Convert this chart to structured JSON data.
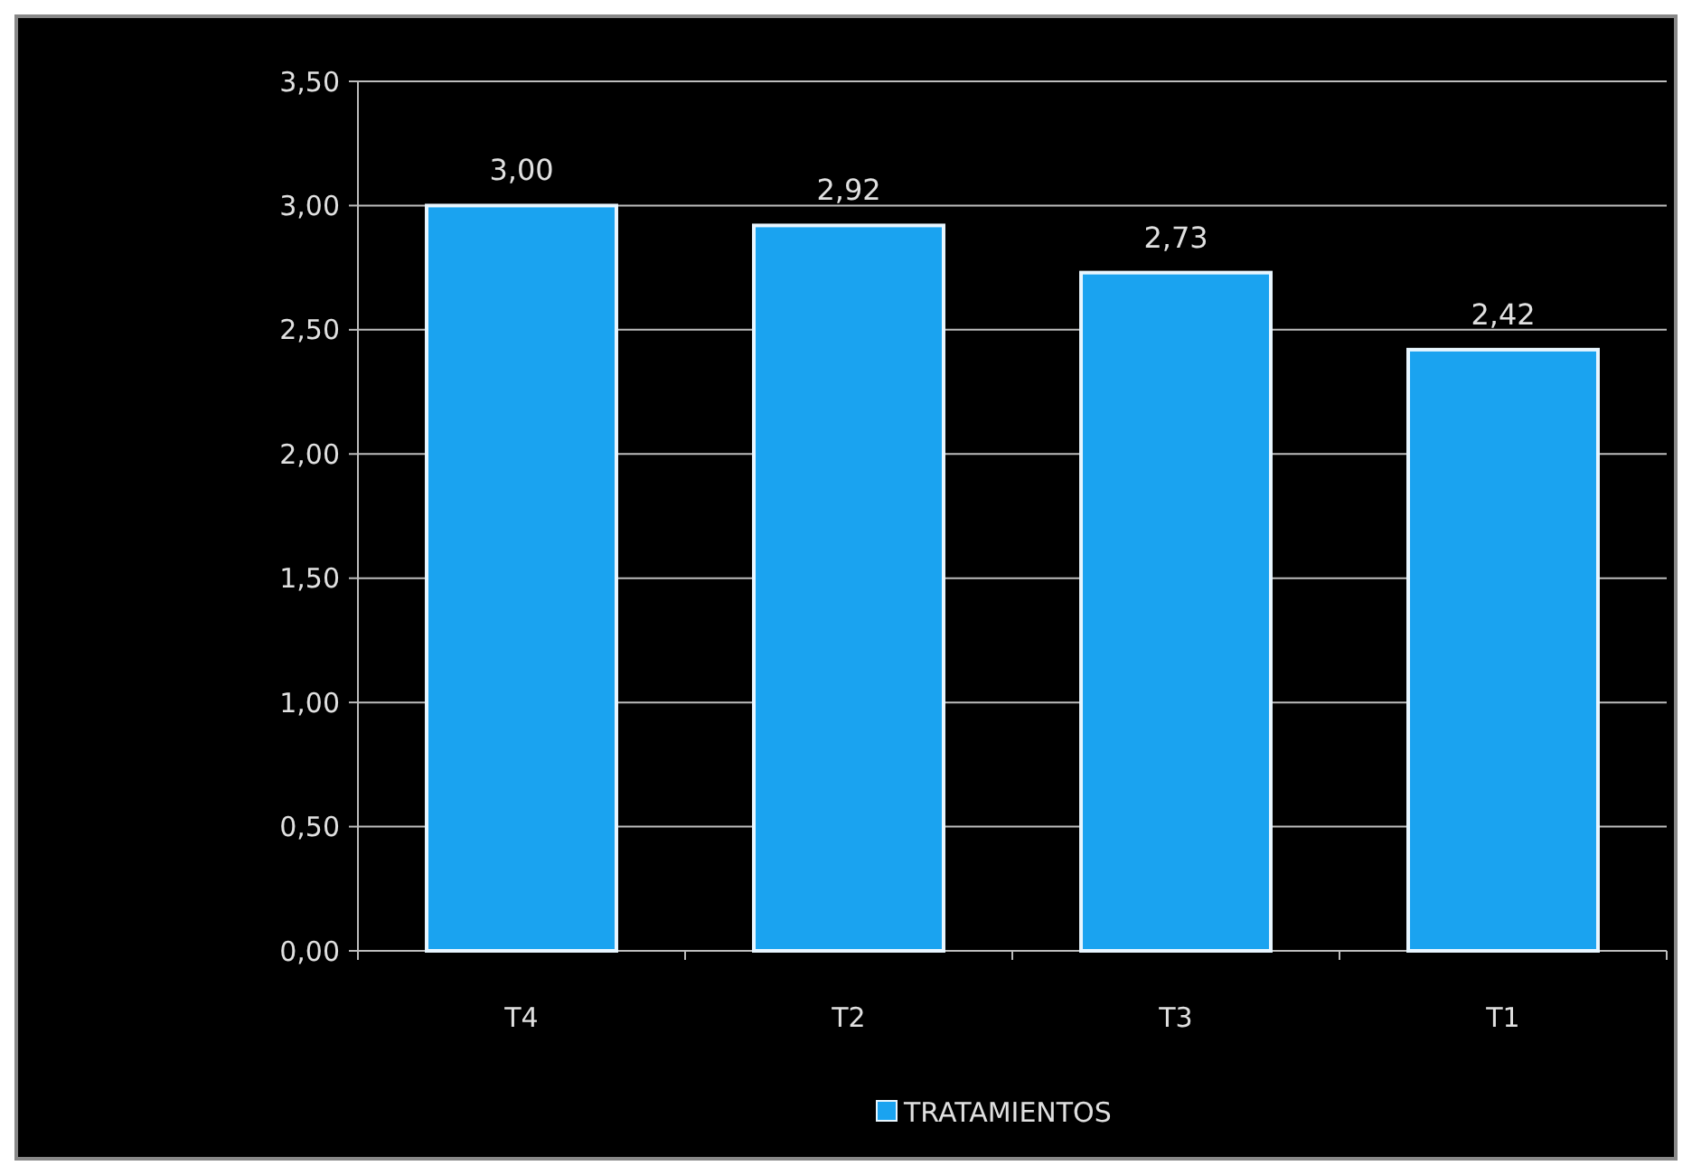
{
  "chart_data": {
    "type": "bar",
    "categories": [
      "T4",
      "T2",
      "T3",
      "T1"
    ],
    "series": [
      {
        "name": "TRATAMIENTOS",
        "color": "#1aa3f0",
        "values": [
          3.0,
          2.92,
          2.73,
          2.42
        ],
        "value_labels": [
          "3,00",
          "2,92",
          "2,73",
          "2,42"
        ]
      }
    ],
    "ylim": [
      0,
      3.5
    ],
    "yticks": [
      {
        "value": 0,
        "label": "0,00"
      },
      {
        "value": 0.5,
        "label": "0,50"
      },
      {
        "value": 1,
        "label": "1,00"
      },
      {
        "value": 1.5,
        "label": "1,50"
      },
      {
        "value": 2,
        "label": "2,00"
      },
      {
        "value": 2.5,
        "label": "2,50"
      },
      {
        "value": 3,
        "label": "3,00"
      },
      {
        "value": 3.5,
        "label": "3,50"
      }
    ],
    "grid": "y",
    "legend": "bottom"
  }
}
